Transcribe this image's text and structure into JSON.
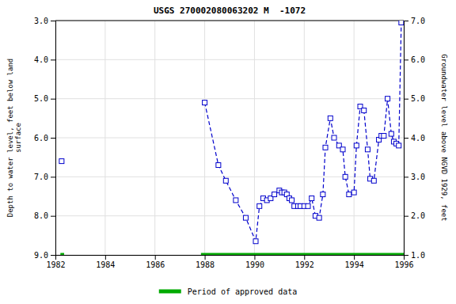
{
  "chart_data": {
    "type": "line",
    "title": "USGS 270002080063202 M  -1072",
    "ylabel": "Depth to water level, feet below land\nsurface",
    "y2label": "Groundwater level above NGVD 1929, feet",
    "xlim": [
      1982,
      1996
    ],
    "xticks": [
      1982,
      1984,
      1986,
      1988,
      1990,
      1992,
      1994,
      1996
    ],
    "ylim": [
      9.0,
      3.0
    ],
    "yticks": [
      {
        "value": 3.0,
        "label": "3.0"
      },
      {
        "value": 4.0,
        "label": "4.0"
      },
      {
        "value": 5.0,
        "label": "5.0"
      },
      {
        "value": 6.0,
        "label": "6.0"
      },
      {
        "value": 7.0,
        "label": "7.0"
      },
      {
        "value": 8.0,
        "label": "8.0"
      },
      {
        "value": 9.0,
        "label": "9.0"
      }
    ],
    "y2lim": [
      1.0,
      7.0
    ],
    "y2ticks": [
      {
        "value": 1.0,
        "label": "1.0"
      },
      {
        "value": 2.0,
        "label": "2.0"
      },
      {
        "value": 3.0,
        "label": "3.0"
      },
      {
        "value": 4.0,
        "label": "4.0"
      },
      {
        "value": 5.0,
        "label": "5.0"
      },
      {
        "value": 6.0,
        "label": "6.0"
      },
      {
        "value": 7.0,
        "label": "7.0"
      }
    ],
    "grid": true,
    "series": [
      {
        "color": "#0000CC",
        "marker": "square",
        "line_style": "none",
        "x": [
          1982.25
        ],
        "values": [
          6.6
        ]
      },
      {
        "color": "#0000CC",
        "marker": "square",
        "line_style": "dashed",
        "x": [
          1988.0,
          1988.55,
          1988.85,
          1989.25,
          1989.65,
          1990.05,
          1990.2,
          1990.35,
          1990.5,
          1990.65,
          1990.8,
          1991.0,
          1991.1,
          1991.2,
          1991.3,
          1991.4,
          1991.5,
          1991.6,
          1991.75,
          1991.85,
          1992.0,
          1992.15,
          1992.3,
          1992.45,
          1992.6,
          1992.75,
          1992.85,
          1993.05,
          1993.2,
          1993.4,
          1993.55,
          1993.65,
          1993.8,
          1994.0,
          1994.1,
          1994.25,
          1994.4,
          1994.55,
          1994.65,
          1994.8,
          1995.0,
          1995.1,
          1995.2,
          1995.35,
          1995.5,
          1995.6,
          1995.7,
          1995.8,
          1995.9
        ],
        "values": [
          5.1,
          6.7,
          7.1,
          7.6,
          8.05,
          8.65,
          7.75,
          7.55,
          7.6,
          7.55,
          7.45,
          7.35,
          7.4,
          7.4,
          7.45,
          7.55,
          7.6,
          7.75,
          7.75,
          7.75,
          7.75,
          7.75,
          7.55,
          8.0,
          8.05,
          7.45,
          6.25,
          5.5,
          6.0,
          6.2,
          6.3,
          7.0,
          7.45,
          7.4,
          6.2,
          5.2,
          5.3,
          6.3,
          7.05,
          7.1,
          6.05,
          5.95,
          5.95,
          5.0,
          5.9,
          6.1,
          6.15,
          6.2,
          3.05
        ]
      }
    ],
    "periods": {
      "name": "Period of approved data",
      "color": "#00aa00",
      "y": 9.0,
      "ranges": [
        [
          1982.2,
          1982.35
        ],
        [
          1987.85,
          1996.0
        ]
      ]
    }
  }
}
